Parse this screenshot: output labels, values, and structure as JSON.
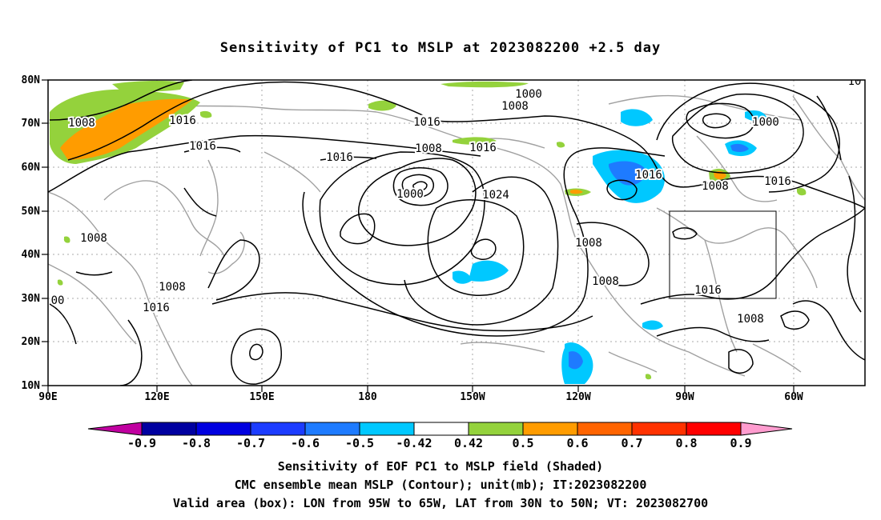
{
  "title": "Sensitivity of PC1 to MSLP at 2023082200 +2.5 day",
  "lat_labels": [
    "80N",
    "70N",
    "60N",
    "50N",
    "40N",
    "30N",
    "20N",
    "10N"
  ],
  "lon_labels": [
    "90E",
    "120E",
    "150E",
    "180",
    "150W",
    "120W",
    "90W",
    "60W"
  ],
  "contour_labels": [
    {
      "text": "1008"
    },
    {
      "text": "1016"
    },
    {
      "text": "1016"
    },
    {
      "text": "1016"
    },
    {
      "text": "1016"
    },
    {
      "text": "1008"
    },
    {
      "text": "1000"
    },
    {
      "text": "1016"
    },
    {
      "text": "1024"
    },
    {
      "text": "1000"
    },
    {
      "text": "1008"
    },
    {
      "text": "1000"
    },
    {
      "text": "1008"
    },
    {
      "text": "1016"
    },
    {
      "text": "1016"
    },
    {
      "text": "1016"
    },
    {
      "text": "1008"
    },
    {
      "text": "1008"
    },
    {
      "text": "1016"
    },
    {
      "text": "1008"
    },
    {
      "text": "1008"
    },
    {
      "text": "1008"
    },
    {
      "text": "1016"
    },
    {
      "text": "00"
    },
    {
      "text": "10"
    }
  ],
  "colorbar": {
    "labels": [
      "-0.9",
      "-0.8",
      "-0.7",
      "-0.6",
      "-0.5",
      "-0.42",
      "0.42",
      "0.5",
      "0.6",
      "0.7",
      "0.8",
      "0.9"
    ],
    "colors": [
      "#0000a0",
      "#0000e0",
      "#1c3cff",
      "#1e7bff",
      "#00c8ff",
      "#ffffff",
      "#94d23c",
      "#ff9c00",
      "#ff6400",
      "#ff3200",
      "#ff0000"
    ],
    "under_color": "#c000a0",
    "over_color": "#ff9ccf"
  },
  "caption": {
    "line1": "Sensitivity of EOF PC1 to MSLP field (Shaded)",
    "line2": "CMC ensemble mean MSLP (Contour); unit(mb); IT:2023082200",
    "line3": "Valid area (box): LON from 95W to 65W, LAT from 30N to 50N; VT: 2023082700"
  }
}
